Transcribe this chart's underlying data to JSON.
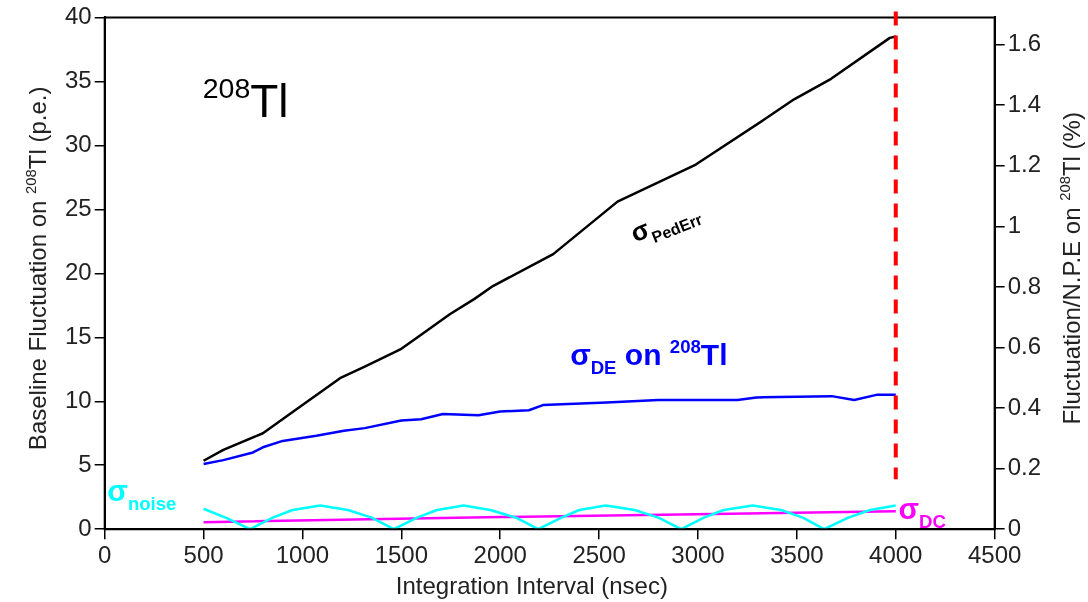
{
  "chart_data": {
    "type": "line",
    "xlabel": "Integration Interval (nsec)",
    "ylabel": "Baseline Fluctuation on $^{208}$Tl (p.e.)",
    "y2label": "Fluctuation/N.P.E on $^{208}$Tl (%)",
    "annotations": [
      "$^{208}$Tl"
    ],
    "xlim": [
      0,
      4500
    ],
    "xticks": [
      0,
      500,
      1000,
      1500,
      2000,
      2500,
      3000,
      3500,
      4000,
      4500
    ],
    "ylim": [
      0,
      40
    ],
    "yticks": [
      0,
      5,
      10,
      15,
      20,
      25,
      30,
      35,
      40
    ],
    "y2lim": [
      0,
      1.69
    ],
    "y2ticks": [
      0,
      0.2,
      0.4,
      0.6,
      0.8,
      1,
      1.2,
      1.4,
      1.6
    ],
    "marker": "none",
    "legend": false,
    "ref_lines": [
      {
        "axis": "x",
        "value": 4000,
        "color": "#ff0000",
        "line_style": "dashed"
      }
    ],
    "series": [
      {
        "name": "σ$_{PedErr}$",
        "color": "#000000",
        "x": [
          500,
          600,
          800,
          1000,
          1190,
          1315,
          1500,
          1600,
          1745,
          1870,
          1963,
          2268,
          2593,
          2989,
          3333,
          3486,
          3673,
          3970,
          4000
        ],
        "values": [
          5.35,
          6.2,
          7.5,
          9.7,
          11.8,
          12.7,
          14.1,
          15.2,
          16.8,
          18.0,
          19.0,
          21.5,
          25.6,
          28.5,
          32.0,
          33.6,
          35.2,
          38.4,
          38.5
        ]
      },
      {
        "name": "σ$_{DE}$ on $^{208}$Tl",
        "color": "#0000ff",
        "x": [
          500,
          600,
          750,
          800,
          900,
          1070,
          1210,
          1315,
          1500,
          1600,
          1710,
          1890,
          2000,
          2145,
          2216,
          2538,
          2800,
          3200,
          3295,
          3676,
          3790,
          3902,
          4000
        ],
        "values": [
          5.1,
          5.4,
          6.0,
          6.4,
          6.9,
          7.3,
          7.7,
          7.9,
          8.5,
          8.6,
          9.0,
          8.9,
          9.2,
          9.3,
          9.7,
          9.9,
          10.1,
          10.1,
          10.3,
          10.4,
          10.1,
          10.5,
          10.5
        ]
      },
      {
        "name": "σ$_{noise}$",
        "color": "#00ffff",
        "x": [
          500,
          620,
          735,
          850,
          950,
          1090,
          1230,
          1350,
          1462,
          1580,
          1680,
          1815,
          1950,
          2080,
          2192,
          2310,
          2400,
          2534,
          2680,
          2800,
          2915,
          3030,
          3130,
          3276,
          3420,
          3530,
          3638,
          3760,
          3870,
          4000
        ],
        "values": [
          1.6,
          0.85,
          0,
          0.9,
          1.5,
          1.85,
          1.5,
          0.9,
          0,
          0.9,
          1.5,
          1.85,
          1.5,
          0.9,
          0,
          0.9,
          1.5,
          1.85,
          1.5,
          0.9,
          0,
          0.9,
          1.5,
          1.85,
          1.5,
          0.9,
          0,
          0.9,
          1.5,
          1.85
        ]
      },
      {
        "name": "σ$_{DC}$",
        "color": "#ff00ff",
        "x": [
          500,
          2000,
          4000
        ],
        "values": [
          0.55,
          0.95,
          1.4
        ]
      }
    ]
  }
}
